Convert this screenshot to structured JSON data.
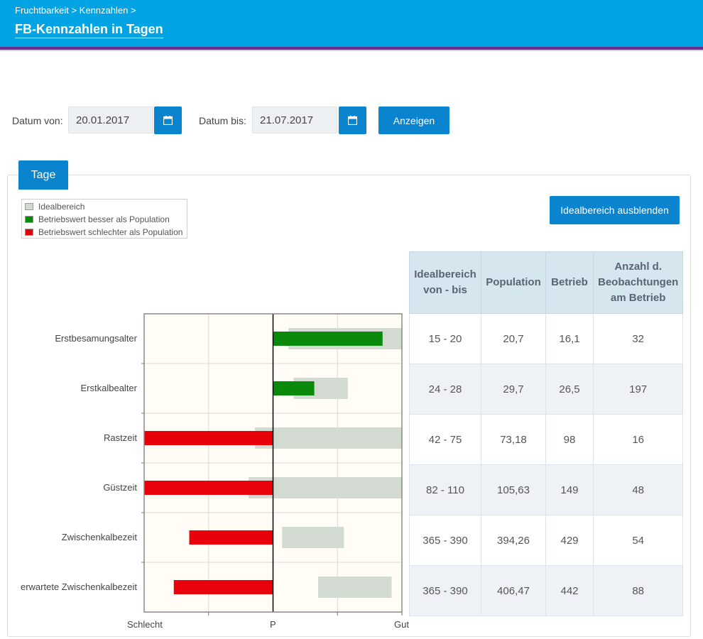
{
  "header": {
    "breadcrumb": "Fruchtbarkeit > Kennzahlen >",
    "title": "FB-Kennzahlen in Tagen"
  },
  "filter": {
    "from_label": "Datum von:",
    "from_value": "20.01.2017",
    "to_label": "Datum bis:",
    "to_value": "21.07.2017",
    "show_button": "Anzeigen",
    "calendar_icon": "calendar-icon"
  },
  "tab": {
    "label": "Tage"
  },
  "toggle_button": "Idealbereich ausblenden",
  "legend": [
    {
      "label": "Idealbereich",
      "color": "#d2dad2"
    },
    {
      "label": "Betriebswert besser als Population",
      "color": "#0a8a0a"
    },
    {
      "label": "Betriebswert schlechter als Population",
      "color": "#e8000b"
    }
  ],
  "chart_data": {
    "type": "bar",
    "orientation": "horizontal",
    "scale": "relative to population (P), from Schlecht to Gut",
    "axis_labels": [
      "Schlecht",
      "P",
      "Gut"
    ],
    "categories": [
      "Erstbesamungsalter",
      "Erstkalbealter",
      "Rastzeit",
      "Güstzeit",
      "Zwischenkalbezeit",
      "erwartete Zwischenkalbezeit"
    ],
    "values": [
      0.85,
      0.32,
      -1.0,
      -1.0,
      -0.65,
      -0.77
    ],
    "ideal_ranges": [
      [
        0.12,
        1.0
      ],
      [
        0.16,
        0.58
      ],
      [
        -0.14,
        1.0
      ],
      [
        -0.19,
        1.0
      ],
      [
        0.07,
        0.55
      ],
      [
        0.35,
        0.92
      ]
    ],
    "xlim": [
      -1,
      1
    ],
    "grid": true,
    "colors": {
      "better": "#0a8a0a",
      "worse": "#e8000b",
      "ideal": "#d2dad2"
    }
  },
  "table": {
    "headers": [
      "Idealbereich von - bis",
      "Population",
      "Betrieb",
      "Anzahl d. Beobachtungen am Betrieb"
    ],
    "rows": [
      [
        "15 - 20",
        "20,7",
        "16,1",
        "32"
      ],
      [
        "24 - 28",
        "29,7",
        "26,5",
        "197"
      ],
      [
        "42 - 75",
        "73,18",
        "98",
        "16"
      ],
      [
        "82 - 110",
        "105,63",
        "149",
        "48"
      ],
      [
        "365 - 390",
        "394,26",
        "429",
        "54"
      ],
      [
        "365 - 390",
        "406,47",
        "442",
        "88"
      ]
    ]
  }
}
